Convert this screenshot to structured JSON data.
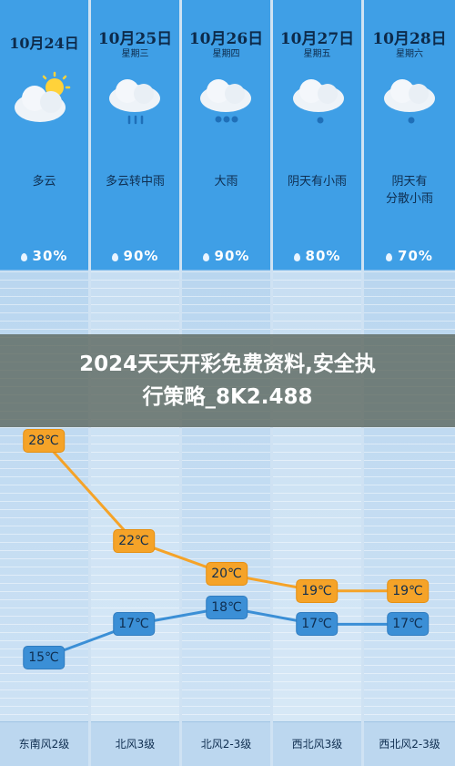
{
  "days": [
    {
      "date": "10月24日",
      "weekday": "",
      "icon": "partly-cloudy-icon",
      "condition": "多云",
      "precip": "30%",
      "high": "28℃",
      "low": "15℃",
      "wind": "东南风2级"
    },
    {
      "date": "10月25日",
      "weekday": "星期三",
      "icon": "cloud-rain-icon",
      "condition": "多云转中雨",
      "precip": "90%",
      "high": "22℃",
      "low": "17℃",
      "wind": "北风3级"
    },
    {
      "date": "10月26日",
      "weekday": "星期四",
      "icon": "cloud-heavy-rain-icon",
      "condition": "大雨",
      "precip": "90%",
      "high": "20℃",
      "low": "18℃",
      "wind": "北风2-3级"
    },
    {
      "date": "10月27日",
      "weekday": "星期五",
      "icon": "cloud-light-rain-icon",
      "condition": "阴天有小雨",
      "precip": "80%",
      "high": "19℃",
      "low": "17℃",
      "wind": "西北风3级"
    },
    {
      "date": "10月28日",
      "weekday": "星期六",
      "icon": "cloud-light-rain-icon",
      "condition": "阴天有 分散小雨",
      "precip": "70%",
      "high": "19℃",
      "low": "17℃",
      "wind": "西北风2-3级"
    }
  ],
  "banner": {
    "line1": "2024天天开彩免费资料,安全执",
    "line2": "行策略_8K2.488"
  },
  "chart_data": {
    "type": "line",
    "categories": [
      "10月24日",
      "10月25日",
      "10月26日",
      "10月27日",
      "10月28日"
    ],
    "series": [
      {
        "values": [
          28,
          22,
          20,
          19,
          19
        ],
        "color": "#f5a328"
      },
      {
        "values": [
          15,
          17,
          18,
          17,
          17
        ],
        "color": "#3b8fd6"
      }
    ],
    "ylim": [
      14,
      29
    ]
  }
}
